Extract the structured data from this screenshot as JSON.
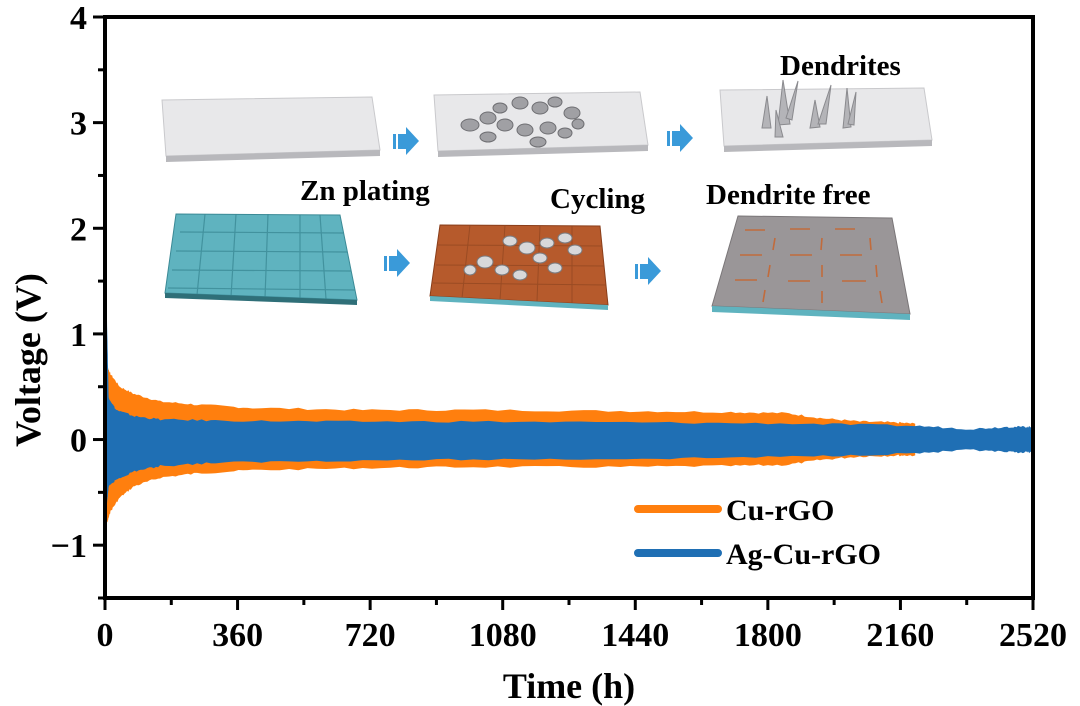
{
  "chart_data": {
    "type": "area",
    "title": "",
    "xlabel": "Time (h)",
    "ylabel": "Voltage (V)",
    "xlim": [
      0,
      2520
    ],
    "ylim": [
      -1.5,
      4
    ],
    "xticks": [
      0,
      360,
      720,
      1080,
      1440,
      1800,
      2160,
      2520
    ],
    "xtick_labels": [
      "0",
      "360",
      "720",
      "1080",
      "1440",
      "1800",
      "2160",
      "2520"
    ],
    "yticks": [
      -1,
      0,
      1,
      2,
      3,
      4
    ],
    "ytick_labels": [
      "−1",
      "0",
      "1",
      "2",
      "3",
      "4"
    ],
    "grid": false,
    "legend_position": "bottom-right",
    "series": [
      {
        "name": "Cu-rGO",
        "color": "#ff7f0e",
        "description": "symmetric voltage band (upper / lower envelope)",
        "x": [
          0,
          5,
          15,
          40,
          80,
          150,
          250,
          400,
          700,
          1000,
          1400,
          1700,
          1850,
          1950,
          2050,
          2150,
          2200
        ],
        "upper": [
          0.15,
          0.7,
          0.62,
          0.5,
          0.43,
          0.36,
          0.33,
          0.3,
          0.28,
          0.28,
          0.27,
          0.26,
          0.25,
          0.2,
          0.17,
          0.16,
          0.15
        ],
        "lower": [
          -0.15,
          -0.8,
          -0.68,
          -0.55,
          -0.44,
          -0.36,
          -0.32,
          -0.29,
          -0.27,
          -0.26,
          -0.26,
          -0.25,
          -0.24,
          -0.19,
          -0.16,
          -0.15,
          -0.15
        ]
      },
      {
        "name": "Ag-Cu-rGO",
        "color": "#1f6fb4",
        "description": "symmetric voltage band (upper / lower envelope)",
        "x": [
          0,
          5,
          10,
          30,
          80,
          150,
          300,
          600,
          1000,
          1500,
          1900,
          2200,
          2350,
          2450,
          2500,
          2520
        ],
        "upper": [
          1.22,
          1.2,
          0.4,
          0.28,
          0.22,
          0.19,
          0.18,
          0.17,
          0.17,
          0.16,
          0.15,
          0.13,
          0.1,
          0.12,
          0.12,
          0.12
        ],
        "lower": [
          -0.4,
          -0.62,
          -0.45,
          -0.38,
          -0.3,
          -0.25,
          -0.22,
          -0.2,
          -0.19,
          -0.18,
          -0.16,
          -0.13,
          -0.1,
          -0.12,
          -0.12,
          -0.12
        ]
      }
    ],
    "inset": {
      "labels": {
        "zn_plating": "Zn plating",
        "cycling": "Cycling",
        "dendrites": "Dendrites",
        "dendrite_free": "Dendrite free"
      },
      "top_row": [
        "bare substrate",
        "Zn plated flakes",
        "dendrites formed"
      ],
      "bottom_row": [
        "woven Ag-Cu-rGO fabric",
        "Zn plated fabric",
        "dendrite-free fabric"
      ],
      "arrow_color": "#3a9ad9"
    }
  }
}
